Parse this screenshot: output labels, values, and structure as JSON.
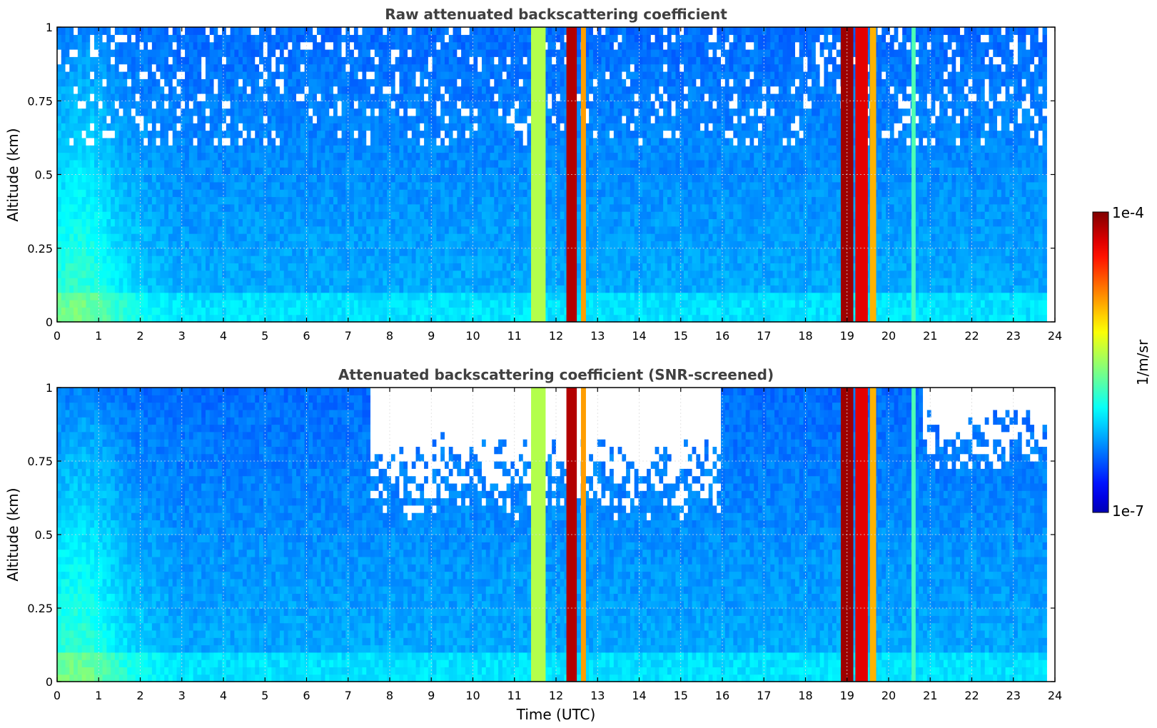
{
  "chart_data": [
    {
      "type": "heatmap",
      "title": "Raw attenuated backscattering coefficient",
      "xlabel": "",
      "ylabel": "Altitude (km)",
      "xlim": [
        0,
        24
      ],
      "ylim": [
        0,
        1
      ],
      "xticks": [
        "0",
        "1",
        "2",
        "3",
        "4",
        "5",
        "6",
        "7",
        "8",
        "9",
        "10",
        "11",
        "12",
        "13",
        "14",
        "15",
        "16",
        "17",
        "18",
        "19",
        "20",
        "21",
        "22",
        "23",
        "24"
      ],
      "yticks": [
        "0",
        "0.25",
        "0.5",
        "0.75",
        "1"
      ],
      "grid": true,
      "screened": false,
      "features": [
        {
          "t0": 11.4,
          "t1": 11.75,
          "level": 0.55
        },
        {
          "t0": 12.25,
          "t1": 12.5,
          "level": 0.95
        },
        {
          "t0": 12.6,
          "t1": 12.72,
          "level": 0.72
        },
        {
          "t0": 18.85,
          "t1": 19.15,
          "level": 0.97
        },
        {
          "t0": 19.2,
          "t1": 19.5,
          "level": 0.9
        },
        {
          "t0": 19.55,
          "t1": 19.7,
          "level": 0.7
        },
        {
          "t0": 20.55,
          "t1": 20.65,
          "level": 0.45
        }
      ]
    },
    {
      "type": "heatmap",
      "title": "Attenuated backscattering coefficient (SNR-screened)",
      "xlabel": "Time (UTC)",
      "ylabel": "Altitude (km)",
      "xlim": [
        0,
        24
      ],
      "ylim": [
        0,
        1
      ],
      "xticks": [
        "0",
        "1",
        "2",
        "3",
        "4",
        "5",
        "6",
        "7",
        "8",
        "9",
        "10",
        "11",
        "12",
        "13",
        "14",
        "15",
        "16",
        "17",
        "18",
        "19",
        "20",
        "21",
        "22",
        "23",
        "24"
      ],
      "yticks": [
        "0",
        "0.25",
        "0.5",
        "0.75",
        "1"
      ],
      "grid": true,
      "screened": true,
      "features": [
        {
          "t0": 11.4,
          "t1": 11.75,
          "level": 0.55
        },
        {
          "t0": 12.25,
          "t1": 12.5,
          "level": 0.95
        },
        {
          "t0": 12.6,
          "t1": 12.72,
          "level": 0.72
        },
        {
          "t0": 18.85,
          "t1": 19.15,
          "level": 0.97
        },
        {
          "t0": 19.2,
          "t1": 19.5,
          "level": 0.9
        },
        {
          "t0": 19.55,
          "t1": 19.7,
          "level": 0.7
        },
        {
          "t0": 20.55,
          "t1": 20.65,
          "level": 0.45
        }
      ]
    }
  ],
  "colorbar": {
    "label": "1/m/sr",
    "max_label": "1e-4",
    "min_label": "1e-7",
    "scale": "log",
    "colormap": "jet"
  }
}
